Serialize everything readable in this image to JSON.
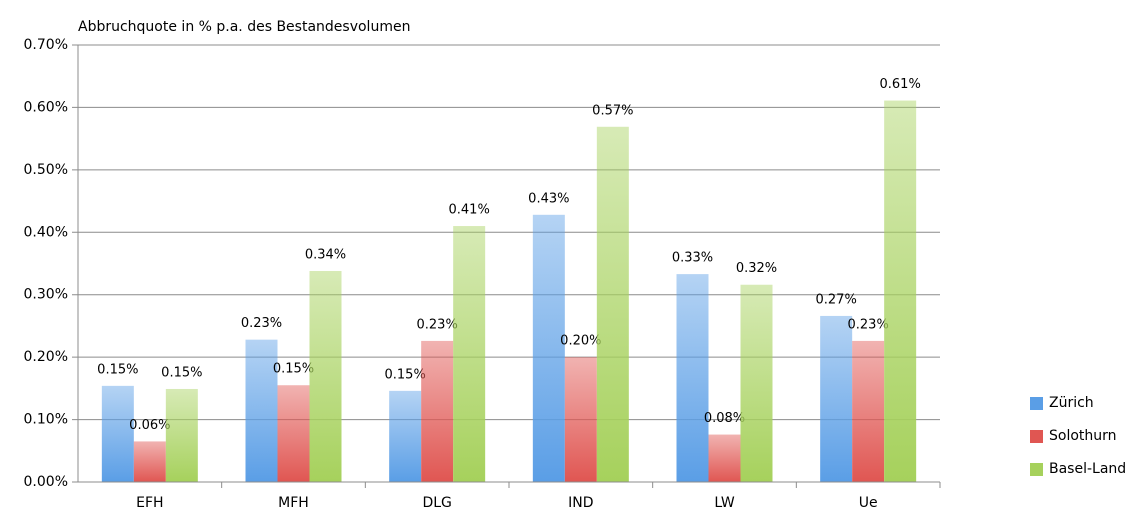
{
  "chart_data": {
    "type": "bar",
    "y_axis_title": "Abbruchquote in % p.a. des Bestandesvolumen",
    "categories": [
      "EFH",
      "MFH",
      "DLG",
      "IND",
      "LW",
      "Ue"
    ],
    "series": [
      {
        "name": "Zürich",
        "color": "#5a9ee6",
        "values": [
          0.154,
          0.228,
          0.146,
          0.428,
          0.333,
          0.266
        ],
        "value_labels": [
          "0.15%",
          "0.23%",
          "0.15%",
          "0.43%",
          "0.33%",
          "0.27%"
        ]
      },
      {
        "name": "Solothurn",
        "color": "#e05652",
        "values": [
          0.065,
          0.155,
          0.226,
          0.2,
          0.076,
          0.226
        ],
        "value_labels": [
          "0.06%",
          "0.15%",
          "0.23%",
          "0.20%",
          "0.08%",
          "0.23%"
        ]
      },
      {
        "name": "Basel-Land",
        "color": "#a6d15c",
        "values": [
          0.149,
          0.338,
          0.41,
          0.569,
          0.316,
          0.611
        ],
        "value_labels": [
          "0.15%",
          "0.34%",
          "0.41%",
          "0.57%",
          "0.32%",
          "0.61%"
        ]
      }
    ],
    "ylim": [
      0,
      0.7
    ],
    "yticks": [
      {
        "value": 0,
        "label": "0.00%"
      },
      {
        "value": 0.1,
        "label": "0.10%"
      },
      {
        "value": 0.2,
        "label": "0.20%"
      },
      {
        "value": 0.3,
        "label": "0.30%"
      },
      {
        "value": 0.4,
        "label": "0.40%"
      },
      {
        "value": 0.5,
        "label": "0.50%"
      },
      {
        "value": 0.6,
        "label": "0.60%"
      },
      {
        "value": 0.7,
        "label": "0.70%"
      }
    ],
    "grid": true,
    "legend": "right"
  }
}
